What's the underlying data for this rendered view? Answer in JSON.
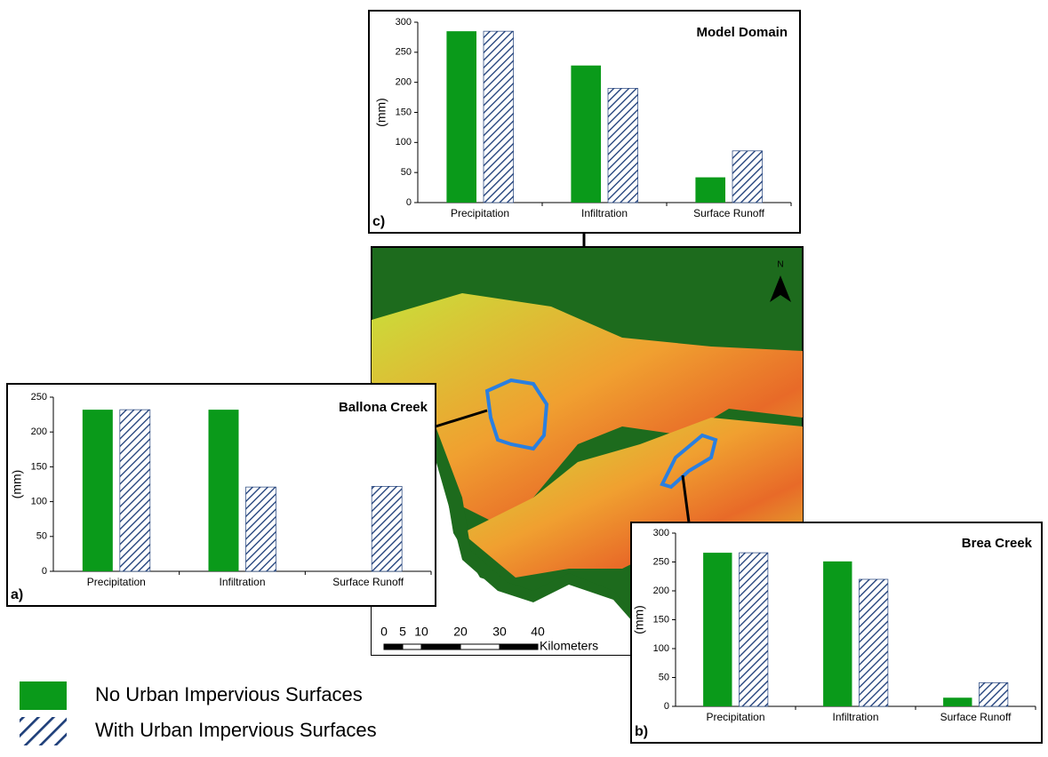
{
  "chart_data": [
    {
      "type": "bar",
      "title": "Model Domain",
      "panel": "c)",
      "y_label": "(mm)",
      "categories": [
        "Precipitation",
        "Infiltration",
        "Surface Runoff"
      ],
      "series": [
        {
          "color": "#0a9a1a",
          "hatch": false,
          "values": [
            285,
            228,
            42
          ]
        },
        {
          "color": "#1f3f7a",
          "hatch": true,
          "values": [
            285,
            190,
            86
          ]
        }
      ],
      "ylim": [
        0,
        300
      ],
      "yticks": [
        0,
        50,
        100,
        150,
        200,
        250,
        300
      ]
    },
    {
      "type": "bar",
      "title": "Ballona Creek",
      "panel": "a)",
      "y_label": "(mm)",
      "categories": [
        "Precipitation",
        "Infiltration",
        "Surface Runoff"
      ],
      "series": [
        {
          "color": "#0a9a1a",
          "hatch": false,
          "values": [
            232,
            232,
            0
          ]
        },
        {
          "color": "#1f3f7a",
          "hatch": true,
          "values": [
            232,
            121,
            122
          ]
        }
      ],
      "ylim": [
        0,
        250
      ],
      "yticks": [
        0,
        50,
        100,
        150,
        200,
        250
      ]
    },
    {
      "type": "bar",
      "title": "Brea Creek",
      "panel": "b)",
      "y_label": "(mm)",
      "categories": [
        "Precipitation",
        "Infiltration",
        "Surface Runoff"
      ],
      "series": [
        {
          "color": "#0a9a1a",
          "hatch": false,
          "values": [
            266,
            251,
            15
          ]
        },
        {
          "color": "#1f3f7a",
          "hatch": true,
          "values": [
            266,
            220,
            41
          ]
        }
      ],
      "ylim": [
        0,
        300
      ],
      "yticks": [
        0,
        50,
        100,
        150,
        200,
        250,
        300
      ]
    }
  ],
  "legend": [
    {
      "label": "No Urban Impervious Surfaces",
      "color": "#0a9a1a",
      "hatch": false
    },
    {
      "label": "With Urban Impervious Surfaces",
      "color": "#1f3f7a",
      "hatch": true
    }
  ],
  "map": {
    "north": "N",
    "scale_labels": [
      "0",
      "5",
      "10",
      "20",
      "30",
      "40"
    ],
    "scale_unit": "Kilometers"
  }
}
